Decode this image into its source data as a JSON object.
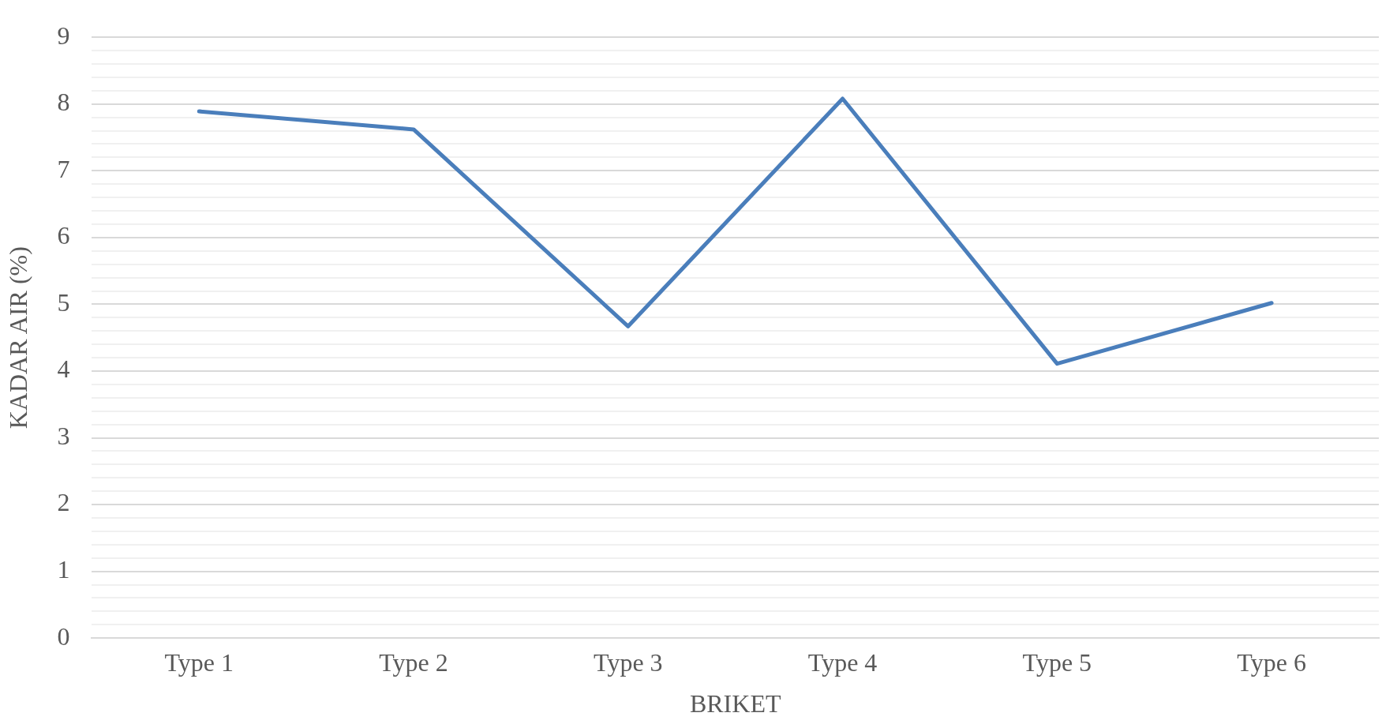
{
  "chart_data": {
    "type": "line",
    "xlabel": "BRIKET",
    "ylabel": "KADAR AIR (%)",
    "categories": [
      "Type 1",
      "Type 2",
      "Type 3",
      "Type 4",
      "Type 5",
      "Type 6"
    ],
    "series": [
      {
        "color": "#4a7ebb",
        "values": [
          7.89,
          7.62,
          4.67,
          8.08,
          4.11,
          5.02
        ]
      }
    ],
    "ylim": [
      0,
      9
    ],
    "yticks": [
      0,
      {
        "value": 0.2,
        "label": null
      },
      {
        "value": 0.4,
        "label": null
      },
      {
        "value": 0.6,
        "label": null
      },
      {
        "value": 0.8,
        "label": null
      },
      1,
      {
        "value": 1.2,
        "label": null
      },
      {
        "value": 1.4,
        "label": null
      },
      {
        "value": 1.6,
        "label": null
      },
      {
        "value": 1.8,
        "label": null
      },
      2,
      {
        "value": 2.2,
        "label": null
      },
      {
        "value": 2.4,
        "label": null
      },
      {
        "value": 2.6,
        "label": null
      },
      {
        "value": 2.8,
        "label": null
      },
      3,
      {
        "value": 3.2,
        "label": null
      },
      {
        "value": 3.4,
        "label": null
      },
      {
        "value": 3.6,
        "label": null
      },
      {
        "value": 3.8,
        "label": null
      },
      4,
      {
        "value": 4.2,
        "label": null
      },
      {
        "value": 4.4,
        "label": null
      },
      {
        "value": 4.6,
        "label": null
      },
      {
        "value": 4.8,
        "label": null
      },
      5,
      {
        "value": 5.2,
        "label": null
      },
      {
        "value": 5.4,
        "label": null
      },
      {
        "value": 5.6,
        "label": null
      },
      {
        "value": 5.8,
        "label": null
      },
      6,
      {
        "value": 6.2,
        "label": null
      },
      {
        "value": 6.4,
        "label": null
      },
      {
        "value": 6.6,
        "label": null
      },
      {
        "value": 6.8,
        "label": null
      },
      7,
      {
        "value": 7.2,
        "label": null
      },
      {
        "value": 7.4,
        "label": null
      },
      {
        "value": 7.6,
        "label": null
      },
      {
        "value": 7.8,
        "label": null
      },
      8,
      {
        "value": 8.2,
        "label": null
      },
      {
        "value": 8.4,
        "label": null
      },
      {
        "value": 8.6,
        "label": null
      },
      {
        "value": 8.8,
        "label": null
      },
      9
    ],
    "grid": "y",
    "legend": false,
    "marker": "none",
    "line_style": "solid"
  }
}
